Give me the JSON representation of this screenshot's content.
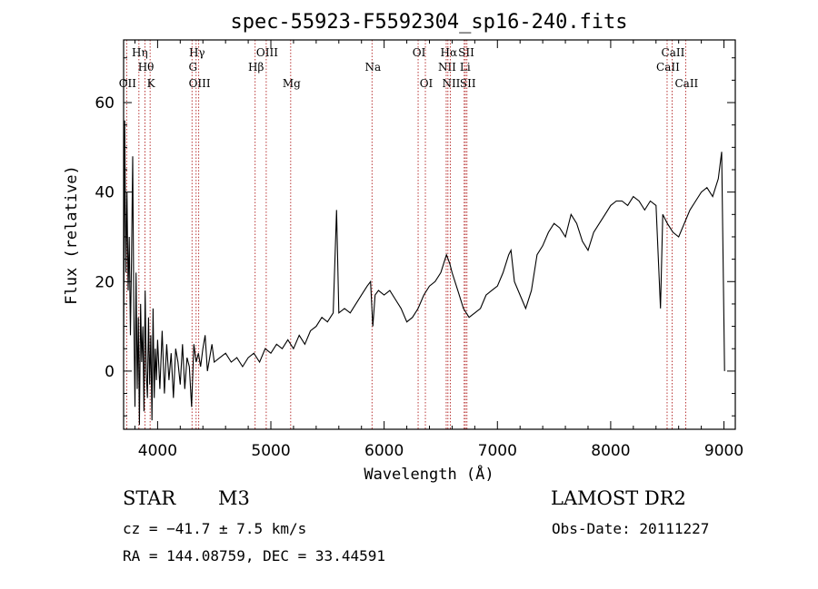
{
  "chart_data": {
    "type": "line",
    "title": "spec-55923-F5592304_sp16-240.fits",
    "xlabel": "Wavelength (Å)",
    "ylabel": "Flux (relative)",
    "xlim": [
      3700,
      9100
    ],
    "ylim": [
      -13,
      74
    ],
    "xticks": [
      4000,
      5000,
      6000,
      7000,
      8000,
      9000
    ],
    "yticks": [
      0,
      20,
      40,
      60
    ],
    "grid": false,
    "line_color": "#000000",
    "marker_color": "#b22222",
    "series": [
      {
        "values": [
          [
            3700,
            5
          ],
          [
            3710,
            56
          ],
          [
            3720,
            22
          ],
          [
            3730,
            40
          ],
          [
            3740,
            18
          ],
          [
            3750,
            30
          ],
          [
            3760,
            8
          ],
          [
            3770,
            25
          ],
          [
            3780,
            48
          ],
          [
            3790,
            14
          ],
          [
            3800,
            -8
          ],
          [
            3810,
            22
          ],
          [
            3820,
            -4
          ],
          [
            3830,
            12
          ],
          [
            3840,
            -12
          ],
          [
            3850,
            15
          ],
          [
            3860,
            2
          ],
          [
            3870,
            10
          ],
          [
            3880,
            -9
          ],
          [
            3890,
            18
          ],
          [
            3900,
            0
          ],
          [
            3910,
            -6
          ],
          [
            3920,
            12
          ],
          [
            3930,
            -3
          ],
          [
            3940,
            8
          ],
          [
            3950,
            -11
          ],
          [
            3960,
            14
          ],
          [
            3970,
            -6
          ],
          [
            3980,
            5
          ],
          [
            3990,
            -2
          ],
          [
            4000,
            7
          ],
          [
            4020,
            -4
          ],
          [
            4040,
            9
          ],
          [
            4060,
            -5
          ],
          [
            4080,
            6
          ],
          [
            4100,
            -2
          ],
          [
            4120,
            4
          ],
          [
            4140,
            -6
          ],
          [
            4160,
            5
          ],
          [
            4180,
            2
          ],
          [
            4200,
            -3
          ],
          [
            4220,
            6
          ],
          [
            4240,
            -4
          ],
          [
            4260,
            3
          ],
          [
            4280,
            1
          ],
          [
            4300,
            -8
          ],
          [
            4320,
            6
          ],
          [
            4340,
            2
          ],
          [
            4360,
            4
          ],
          [
            4380,
            1
          ],
          [
            4400,
            5
          ],
          [
            4420,
            8
          ],
          [
            4440,
            0
          ],
          [
            4460,
            3
          ],
          [
            4480,
            6
          ],
          [
            4500,
            2
          ],
          [
            4550,
            3
          ],
          [
            4600,
            4
          ],
          [
            4650,
            2
          ],
          [
            4700,
            3
          ],
          [
            4750,
            1
          ],
          [
            4800,
            3
          ],
          [
            4850,
            4
          ],
          [
            4900,
            2
          ],
          [
            4950,
            5
          ],
          [
            5000,
            4
          ],
          [
            5050,
            6
          ],
          [
            5100,
            5
          ],
          [
            5150,
            7
          ],
          [
            5200,
            5
          ],
          [
            5250,
            8
          ],
          [
            5300,
            6
          ],
          [
            5350,
            9
          ],
          [
            5400,
            10
          ],
          [
            5450,
            12
          ],
          [
            5500,
            11
          ],
          [
            5550,
            13
          ],
          [
            5580,
            36
          ],
          [
            5600,
            13
          ],
          [
            5650,
            14
          ],
          [
            5700,
            13
          ],
          [
            5750,
            15
          ],
          [
            5800,
            17
          ],
          [
            5850,
            19
          ],
          [
            5880,
            20
          ],
          [
            5900,
            10
          ],
          [
            5920,
            17
          ],
          [
            5950,
            18
          ],
          [
            6000,
            17
          ],
          [
            6050,
            18
          ],
          [
            6100,
            16
          ],
          [
            6150,
            14
          ],
          [
            6200,
            11
          ],
          [
            6250,
            12
          ],
          [
            6300,
            14
          ],
          [
            6350,
            17
          ],
          [
            6400,
            19
          ],
          [
            6450,
            20
          ],
          [
            6500,
            22
          ],
          [
            6550,
            26
          ],
          [
            6580,
            24
          ],
          [
            6600,
            22
          ],
          [
            6650,
            18
          ],
          [
            6700,
            14
          ],
          [
            6750,
            12
          ],
          [
            6800,
            13
          ],
          [
            6850,
            14
          ],
          [
            6900,
            17
          ],
          [
            6950,
            18
          ],
          [
            7000,
            19
          ],
          [
            7050,
            22
          ],
          [
            7100,
            26
          ],
          [
            7120,
            27
          ],
          [
            7150,
            20
          ],
          [
            7200,
            17
          ],
          [
            7250,
            14
          ],
          [
            7300,
            18
          ],
          [
            7350,
            26
          ],
          [
            7400,
            28
          ],
          [
            7450,
            31
          ],
          [
            7500,
            33
          ],
          [
            7550,
            32
          ],
          [
            7600,
            30
          ],
          [
            7650,
            35
          ],
          [
            7700,
            33
          ],
          [
            7750,
            29
          ],
          [
            7800,
            27
          ],
          [
            7850,
            31
          ],
          [
            7900,
            33
          ],
          [
            7950,
            35
          ],
          [
            8000,
            37
          ],
          [
            8050,
            38
          ],
          [
            8100,
            38
          ],
          [
            8150,
            37
          ],
          [
            8200,
            39
          ],
          [
            8250,
            38
          ],
          [
            8300,
            36
          ],
          [
            8350,
            38
          ],
          [
            8400,
            37
          ],
          [
            8440,
            14
          ],
          [
            8460,
            35
          ],
          [
            8500,
            33
          ],
          [
            8550,
            31
          ],
          [
            8600,
            30
          ],
          [
            8650,
            33
          ],
          [
            8700,
            36
          ],
          [
            8750,
            38
          ],
          [
            8800,
            40
          ],
          [
            8850,
            41
          ],
          [
            8900,
            39
          ],
          [
            8950,
            43
          ],
          [
            8980,
            49
          ],
          [
            9000,
            11
          ],
          [
            9005,
            0
          ]
        ]
      }
    ],
    "line_markers": [
      {
        "wavelength": 3727,
        "label": "OII",
        "row": 3
      },
      {
        "wavelength": 3835,
        "label": "Hη",
        "row": 1
      },
      {
        "wavelength": 3889,
        "label": "Hθ",
        "row": 2
      },
      {
        "wavelength": 3934,
        "label": "K",
        "row": 3
      },
      {
        "wavelength": 4340,
        "label": "Hγ",
        "row": 1
      },
      {
        "wavelength": 4304,
        "label": "G",
        "row": 2
      },
      {
        "wavelength": 4363,
        "label": "OIII",
        "row": 3
      },
      {
        "wavelength": 4861,
        "label": "Hβ",
        "row": 2
      },
      {
        "wavelength": 4959,
        "label": "OIII",
        "row": 1
      },
      {
        "wavelength": 5175,
        "label": "Mg",
        "row": 3
      },
      {
        "wavelength": 5893,
        "label": "Na",
        "row": 2
      },
      {
        "wavelength": 6300,
        "label": "OI",
        "row": 1
      },
      {
        "wavelength": 6364,
        "label": "OI",
        "row": 3
      },
      {
        "wavelength": 6563,
        "label": "Hα",
        "row": 1
      },
      {
        "wavelength": 6548,
        "label": "NII",
        "row": 2
      },
      {
        "wavelength": 6584,
        "label": "NII",
        "row": 3
      },
      {
        "wavelength": 6707,
        "label": "Li",
        "row": 2
      },
      {
        "wavelength": 6717,
        "label": "SII",
        "row": 1
      },
      {
        "wavelength": 6731,
        "label": "SII",
        "row": 3
      },
      {
        "wavelength": 8498,
        "label": "CaII",
        "row": 2
      },
      {
        "wavelength": 8542,
        "label": "CaII",
        "row": 1
      },
      {
        "wavelength": 8662,
        "label": "CaII",
        "row": 3
      }
    ]
  },
  "info": {
    "object_class": "STAR",
    "subclass": "M3",
    "survey": "LAMOST DR2",
    "cz": "cz = −41.7 ± 7.5 km/s",
    "obs_date": "Obs-Date: 20111227",
    "coords": "RA = 144.08759, DEC =  33.44591"
  }
}
